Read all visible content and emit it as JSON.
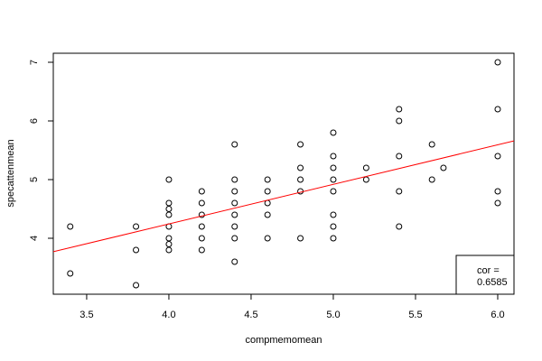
{
  "chart_data": {
    "type": "scatter",
    "xlabel": "compmemomean",
    "ylabel": "specattenmean",
    "x": [
      3.4,
      3.4,
      3.8,
      3.8,
      3.8,
      4.0,
      4.0,
      4.0,
      4.0,
      4.0,
      4.0,
      4.0,
      4.0,
      4.2,
      4.2,
      4.2,
      4.2,
      4.2,
      4.2,
      4.4,
      4.4,
      4.4,
      4.4,
      4.4,
      4.4,
      4.4,
      4.4,
      4.6,
      4.6,
      4.6,
      4.6,
      4.6,
      4.8,
      4.8,
      4.8,
      4.8,
      4.8,
      5.0,
      5.0,
      5.0,
      5.0,
      5.0,
      5.0,
      5.0,
      5.0,
      5.2,
      5.2,
      5.4,
      5.4,
      5.4,
      5.4,
      5.4,
      5.6,
      5.6,
      5.67,
      6.0,
      6.0,
      6.0,
      6.0,
      6.0
    ],
    "y": [
      4.2,
      3.4,
      4.2,
      3.8,
      3.2,
      5.0,
      4.6,
      4.5,
      4.4,
      4.2,
      4.0,
      3.9,
      3.8,
      4.8,
      4.6,
      4.4,
      4.2,
      4.0,
      3.8,
      5.6,
      5.0,
      4.8,
      4.6,
      4.4,
      4.2,
      4.0,
      3.6,
      5.0,
      4.8,
      4.6,
      4.4,
      4.0,
      5.6,
      5.2,
      5.0,
      4.8,
      4.0,
      5.8,
      5.4,
      5.2,
      5.0,
      4.8,
      4.4,
      4.2,
      4.0,
      5.2,
      5.0,
      6.2,
      6.0,
      5.4,
      4.8,
      4.2,
      5.6,
      5.0,
      5.2,
      7.0,
      6.2,
      5.4,
      4.8,
      4.6
    ],
    "color": "#000000",
    "fit": {
      "x": [
        3.297,
        6.099
      ],
      "y": [
        3.77,
        5.66
      ],
      "color": "#ff0000"
    },
    "annotation": [
      "cor =",
      "0.6585"
    ],
    "xlim": [
      3.297,
      6.099
    ],
    "ylim": [
      3.046,
      7.154
    ],
    "xticks": [
      3.5,
      {
        "value": 4,
        "label": "4.0"
      },
      4.5,
      {
        "value": 5,
        "label": "5.0"
      },
      5.5,
      {
        "value": 6,
        "label": "6.0"
      }
    ],
    "yticks": [
      4,
      5,
      6,
      7
    ],
    "grid": false
  }
}
